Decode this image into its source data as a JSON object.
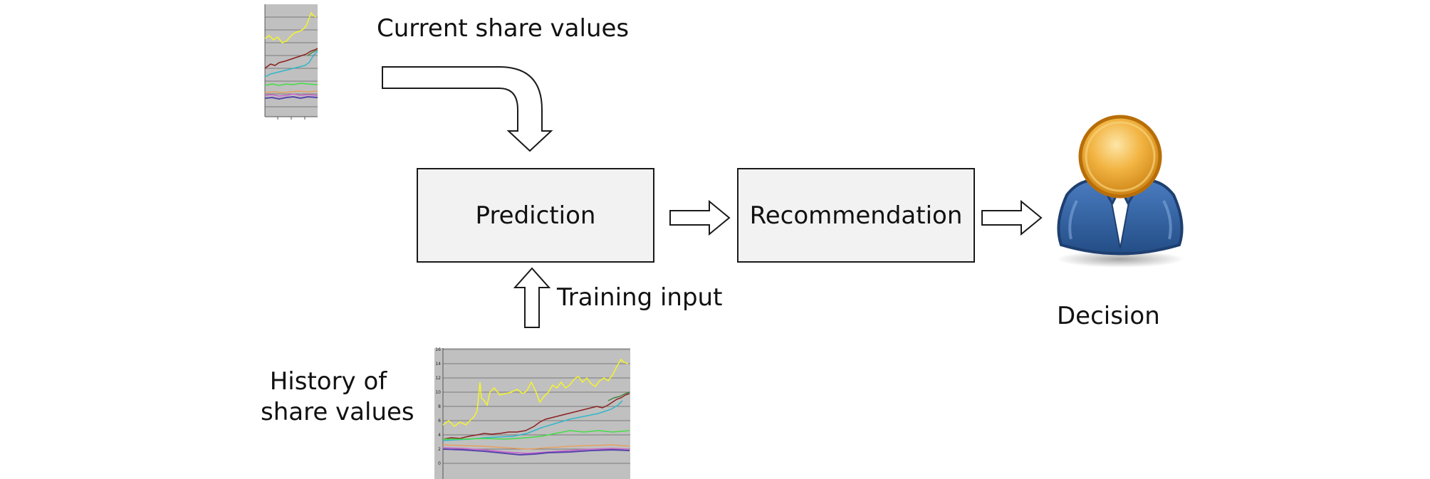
{
  "labels": {
    "current_share_values": "Current share values",
    "training_input": "Training input",
    "history_line1": "History of",
    "history_line2": "share values",
    "decision": "Decision"
  },
  "boxes": {
    "prediction": "Prediction",
    "recommendation": "Recommendation"
  },
  "history_chart": {
    "y_ticks": [
      "16",
      "14",
      "12",
      "10",
      "8",
      "6",
      "4",
      "2",
      "0"
    ]
  },
  "colors": {
    "box_fill": "#f2f2f2",
    "chart_bg": "#c0c0c0",
    "person_head": "#e8a020",
    "person_body": "#2f5f9e"
  },
  "icons": {
    "person": "user-avatar-icon"
  }
}
